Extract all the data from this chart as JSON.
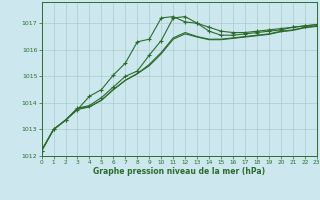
{
  "title": "Graphe pression niveau de la mer (hPa)",
  "background_color": "#cce8ee",
  "plot_bg_color": "#cce8ee",
  "grid_color": "#aacccc",
  "line_color": "#2d6b2d",
  "xlim": [
    0,
    23
  ],
  "ylim": [
    1012,
    1017.8
  ],
  "yticks": [
    1012,
    1013,
    1014,
    1015,
    1016,
    1017
  ],
  "xticks": [
    0,
    1,
    2,
    3,
    4,
    5,
    6,
    7,
    8,
    9,
    10,
    11,
    12,
    13,
    14,
    15,
    16,
    17,
    18,
    19,
    20,
    21,
    22,
    23
  ],
  "s1_x": [
    0,
    1,
    2,
    3,
    4,
    5,
    6,
    7,
    8,
    9,
    10,
    11,
    12,
    13,
    14,
    15,
    16,
    17,
    18,
    19,
    20,
    21,
    22,
    23
  ],
  "s1_y": [
    1012.2,
    1013.0,
    1013.35,
    1013.75,
    1014.25,
    1014.5,
    1015.05,
    1015.5,
    1016.3,
    1016.4,
    1017.2,
    1017.25,
    1017.05,
    1017.0,
    1016.7,
    1016.55,
    1016.55,
    1016.6,
    1016.65,
    1016.7,
    1016.75,
    1016.85,
    1016.9,
    1016.95
  ],
  "s2_x": [
    0,
    1,
    2,
    3,
    4,
    5,
    6,
    7,
    8,
    9,
    10,
    11,
    12,
    13,
    14,
    15,
    16,
    17,
    18,
    19,
    20,
    21,
    22,
    23
  ],
  "s2_y": [
    1012.2,
    1013.0,
    1013.35,
    1013.8,
    1013.9,
    1014.2,
    1014.6,
    1015.0,
    1015.2,
    1015.8,
    1016.35,
    1017.2,
    1017.25,
    1017.0,
    1016.85,
    1016.7,
    1016.65,
    1016.65,
    1016.7,
    1016.75,
    1016.8,
    1016.85,
    1016.9,
    1016.95
  ],
  "s3_x": [
    0,
    1,
    2,
    3,
    4,
    5,
    6,
    7,
    8,
    9,
    10,
    11,
    12,
    13,
    14,
    15,
    16,
    17,
    18,
    19,
    20,
    21,
    22,
    23
  ],
  "s3_y": [
    1012.2,
    1013.0,
    1013.35,
    1013.8,
    1013.85,
    1014.1,
    1014.5,
    1014.85,
    1015.1,
    1015.45,
    1015.9,
    1016.45,
    1016.65,
    1016.5,
    1016.4,
    1016.4,
    1016.45,
    1016.5,
    1016.55,
    1016.6,
    1016.7,
    1016.75,
    1016.85,
    1016.9
  ],
  "s4_x": [
    0,
    1,
    2,
    3,
    4,
    5,
    6,
    7,
    8,
    9,
    10,
    11,
    12,
    13,
    14,
    15,
    16,
    17,
    18,
    19,
    20,
    21,
    22,
    23
  ],
  "s4_y": [
    1012.2,
    1013.0,
    1013.35,
    1013.75,
    1013.85,
    1014.1,
    1014.5,
    1014.85,
    1015.1,
    1015.4,
    1015.85,
    1016.4,
    1016.6,
    1016.48,
    1016.38,
    1016.38,
    1016.43,
    1016.48,
    1016.53,
    1016.58,
    1016.68,
    1016.73,
    1016.83,
    1016.88
  ]
}
